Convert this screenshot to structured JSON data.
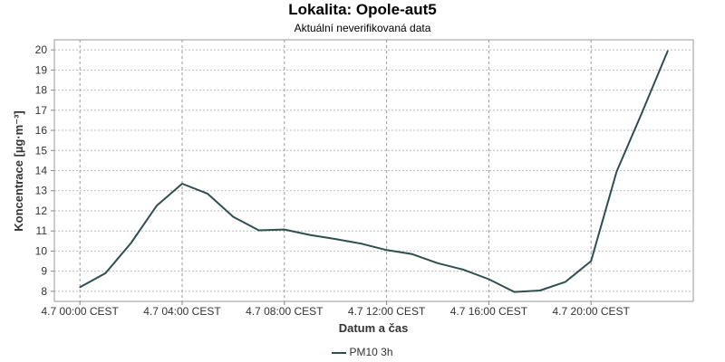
{
  "chart_data": {
    "type": "line",
    "title": "Lokalita: Opole-aut5",
    "subtitle": "Aktuální neverifikovaná data",
    "xlabel": "Datum a čas",
    "ylabel": "Koncentrace [µg·m⁻³]",
    "ylim": [
      7.5,
      20.5
    ],
    "xlim": [
      -1,
      24
    ],
    "grid": true,
    "legend_position": "bottom",
    "x_ticks": [
      {
        "x": 0,
        "label": "4.7 00:00 CEST"
      },
      {
        "x": 4,
        "label": "4.7 04:00 CEST"
      },
      {
        "x": 8,
        "label": "4.7 08:00 CEST"
      },
      {
        "x": 12,
        "label": "4.7 12:00 CEST"
      },
      {
        "x": 16,
        "label": "4.7 16:00 CEST"
      },
      {
        "x": 20,
        "label": "4.7 20:00 CEST"
      }
    ],
    "y_ticks": [
      8,
      9,
      10,
      11,
      12,
      13,
      14,
      15,
      16,
      17,
      18,
      19,
      20
    ],
    "series": [
      {
        "name": "PM10 3h",
        "color": "#2f4f4f",
        "x": [
          0,
          1,
          2,
          3,
          4,
          5,
          6,
          7,
          8,
          9,
          10,
          11,
          12,
          13,
          14,
          15,
          16,
          17,
          18,
          19,
          20,
          21,
          22,
          23
        ],
        "values": [
          8.2,
          8.9,
          10.4,
          12.25,
          13.35,
          12.85,
          11.7,
          11.03,
          11.07,
          10.8,
          10.6,
          10.37,
          10.05,
          9.85,
          9.4,
          9.08,
          8.6,
          7.97,
          8.04,
          8.47,
          9.5,
          13.95,
          16.9,
          19.95
        ]
      }
    ]
  }
}
